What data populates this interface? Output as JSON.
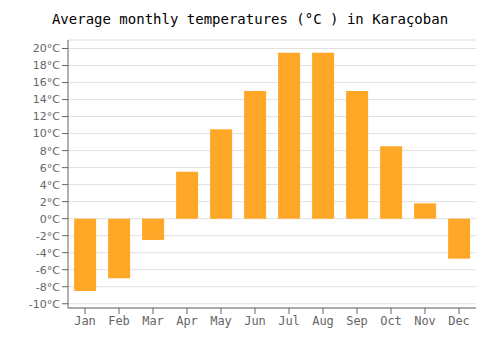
{
  "chart_data": {
    "type": "bar",
    "title": "Average monthly temperatures (°C ) in Karaçoban",
    "categories": [
      "Jan",
      "Feb",
      "Mar",
      "Apr",
      "May",
      "Jun",
      "Jul",
      "Aug",
      "Sep",
      "Oct",
      "Nov",
      "Dec"
    ],
    "values": [
      -8.5,
      -7.0,
      -2.5,
      5.5,
      10.5,
      15.0,
      19.5,
      19.5,
      15.0,
      8.5,
      1.8,
      -4.7
    ],
    "color": "#FFA726",
    "ylim": [
      -10.5,
      21
    ],
    "yticks": [
      {
        "value": -10,
        "label": "-10°C"
      },
      {
        "value": -8,
        "label": "-8°C"
      },
      {
        "value": -6,
        "label": "-6°C"
      },
      {
        "value": -4,
        "label": "-4°C"
      },
      {
        "value": -2,
        "label": "-2°C"
      },
      {
        "value": 0,
        "label": "0°C"
      },
      {
        "value": 2,
        "label": "2°C"
      },
      {
        "value": 4,
        "label": "4°C"
      },
      {
        "value": 6,
        "label": "6°C"
      },
      {
        "value": 8,
        "label": "8°C"
      },
      {
        "value": 10,
        "label": "10°C"
      },
      {
        "value": 12,
        "label": "12°C"
      },
      {
        "value": 14,
        "label": "14°C"
      },
      {
        "value": 16,
        "label": "16°C"
      },
      {
        "value": 18,
        "label": "18°C"
      },
      {
        "value": 20,
        "label": "20°C"
      }
    ],
    "grid": true
  }
}
